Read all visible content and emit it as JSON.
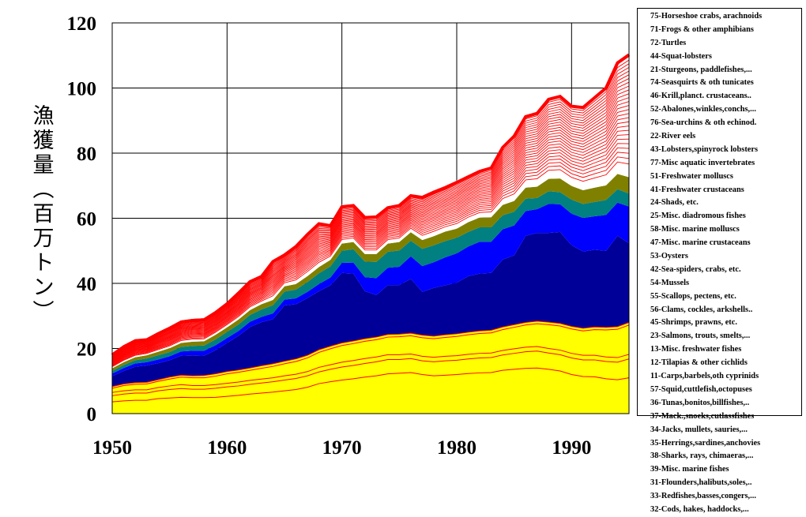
{
  "chart_data": {
    "type": "area",
    "title": "",
    "ylabel": "漁獲量（百万トン）",
    "xlabel": "",
    "xlim": [
      1950,
      1995
    ],
    "ylim": [
      0,
      120
    ],
    "x_ticks": [
      "1950",
      "1960",
      "1970",
      "1980",
      "1990"
    ],
    "y_ticks": [
      "0",
      "20",
      "40",
      "60",
      "80",
      "100",
      "120"
    ],
    "grid": true,
    "legend_position": "right",
    "x": [
      1950,
      1951,
      1952,
      1953,
      1954,
      1955,
      1956,
      1957,
      1958,
      1959,
      1960,
      1961,
      1962,
      1963,
      1964,
      1965,
      1966,
      1967,
      1968,
      1969,
      1970,
      1971,
      1972,
      1973,
      1974,
      1975,
      1976,
      1977,
      1978,
      1979,
      1980,
      1981,
      1982,
      1983,
      1984,
      1985,
      1986,
      1987,
      1988,
      1989,
      1990,
      1991,
      1992,
      1993,
      1994,
      1995
    ],
    "series": [
      {
        "name": "32-Cods, hakes, haddocks,...",
        "color": "#ffff00"
      },
      {
        "name": "33-Redfishes,basses,congers,...",
        "color": "#ffff00"
      },
      {
        "name": "31-Flounders,halibuts,soles,..",
        "color": "#ffff00"
      },
      {
        "name": "39-Misc. marine fishes",
        "color": "#ffff00"
      },
      {
        "name": "38-Sharks, rays, chimaeras,...",
        "color": "#ffff00"
      },
      {
        "name": "35-Herrings,sardines,anchovies",
        "color": "#000099"
      },
      {
        "name": "34-Jacks, mullets, sauries,...",
        "color": "#0000ff"
      },
      {
        "name": "37-Mack.,snoeks,cutlassfishes",
        "color": "#008080"
      },
      {
        "name": "36-Tunas,bonitos,billfishes,..",
        "color": "#808000"
      },
      {
        "name": "57-Squid,cuttlefish,octopuses",
        "color": "#ffffff"
      },
      {
        "name": "11-Carps,barbels,oth cyprinids",
        "color": "#ffffff"
      },
      {
        "name": "12-Tilapias & other cichlids",
        "color": "#ffffff"
      },
      {
        "name": "13-Misc. freshwater fishes",
        "color": "#ffffff"
      },
      {
        "name": "23-Salmons, trouts, smelts,...",
        "color": "#ffffff"
      },
      {
        "name": "45-Shrimps, prawns, etc.",
        "color": "#ffffff"
      },
      {
        "name": "56-Clams, cockles, arkshells..",
        "color": "#ffffff"
      },
      {
        "name": "55-Scallops, pectens, etc.",
        "color": "#ffffff"
      },
      {
        "name": "54-Mussels",
        "color": "#ffffff"
      },
      {
        "name": "42-Sea-spiders, crabs, etc.",
        "color": "#ffffff"
      },
      {
        "name": "53-Oysters",
        "color": "#ffffff"
      },
      {
        "name": "47-Misc. marine crustaceans",
        "color": "#ffffff"
      },
      {
        "name": "58-Misc. marine molluscs",
        "color": "#ffffff"
      },
      {
        "name": "25-Misc. diadromous fishes",
        "color": "#ffffff"
      },
      {
        "name": "24-Shads, etc.",
        "color": "#ffffff"
      },
      {
        "name": "41-Freshwater crustaceans",
        "color": "#ffffff"
      },
      {
        "name": "51-Freshwater molluscs",
        "color": "#ffffff"
      },
      {
        "name": "77-Misc aquatic invertebrates",
        "color": "#ffffff"
      },
      {
        "name": "43-Lobsters,spinyrock lobsters",
        "color": "#ffffff"
      },
      {
        "name": "22-River eels",
        "color": "#ffffff"
      },
      {
        "name": "76-Sea-urchins & oth echinod.",
        "color": "#ffffff"
      },
      {
        "name": "52-Abalones,winkles,conchs,...",
        "color": "#ffffff"
      },
      {
        "name": "46-Krill,planct. crustaceans..",
        "color": "#ffffff"
      },
      {
        "name": "74-Seasquirts & oth tunicates",
        "color": "#ffffff"
      },
      {
        "name": "21-Sturgeons, paddlefishes,...",
        "color": "#ffffff"
      },
      {
        "name": "44-Squat-lobsters",
        "color": "#ffffff"
      },
      {
        "name": "72-Turtles",
        "color": "#ffffff"
      },
      {
        "name": "71-Frogs & other amphibians",
        "color": "#ffffff"
      },
      {
        "name": "75-Horseshoe crabs, arachnoids",
        "color": "#ffffff"
      }
    ],
    "cumulative_boundaries": {
      "cods_top": [
        3.6,
        3.9,
        4.1,
        4.1,
        4.6,
        4.8,
        5.0,
        4.9,
        4.9,
        5.0,
        5.3,
        5.6,
        6.0,
        6.3,
        6.6,
        7.0,
        7.4,
        8.1,
        9.2,
        9.8,
        10.3,
        10.7,
        11.2,
        11.6,
        12.2,
        12.4,
        12.6,
        12.0,
        11.6,
        11.8,
        12.0,
        12.3,
        12.5,
        12.6,
        13.3,
        13.6,
        13.9,
        14.0,
        13.6,
        13.1,
        12.0,
        11.4,
        11.3,
        10.7,
        10.4,
        11.0
      ],
      "redfish_top": [
        5.5,
        6.0,
        6.3,
        6.3,
        7.0,
        7.4,
        7.7,
        7.5,
        7.5,
        7.8,
        8.2,
        8.5,
        9.0,
        9.4,
        9.8,
        10.3,
        10.8,
        11.6,
        12.8,
        13.6,
        14.3,
        14.8,
        15.4,
        15.9,
        16.6,
        16.6,
        16.9,
        16.2,
        15.9,
        16.2,
        16.4,
        16.8,
        17.1,
        17.2,
        18.0,
        18.5,
        19.0,
        19.2,
        18.6,
        18.1,
        17.1,
        16.5,
        16.5,
        16.0,
        15.8,
        16.8
      ],
      "flounder_top": [
        6.5,
        7.0,
        7.3,
        7.3,
        8.0,
        8.5,
        8.9,
        8.6,
        8.6,
        8.9,
        9.3,
        9.7,
        10.2,
        10.6,
        11.0,
        11.6,
        12.1,
        12.9,
        14.2,
        15.0,
        15.8,
        16.3,
        16.9,
        17.4,
        18.1,
        18.1,
        18.3,
        17.6,
        17.3,
        17.6,
        17.8,
        18.2,
        18.5,
        18.6,
        19.4,
        19.9,
        20.4,
        20.6,
        20.0,
        19.5,
        18.5,
        17.9,
        17.9,
        17.4,
        17.2,
        18.2
      ],
      "miscmarine_top": [
        7.8,
        8.6,
        9.0,
        9.1,
        9.9,
        10.6,
        11.2,
        11.0,
        11.0,
        11.5,
        12.2,
        12.7,
        13.3,
        13.9,
        14.5,
        15.3,
        16.0,
        17.1,
        18.8,
        19.9,
        20.9,
        21.5,
        22.2,
        22.7,
        23.5,
        23.6,
        23.9,
        23.3,
        23.0,
        23.4,
        23.7,
        24.2,
        24.6,
        24.8,
        25.8,
        26.5,
        27.2,
        27.6,
        27.3,
        26.9,
        26.0,
        25.4,
        25.8,
        25.7,
        25.9,
        27.2
      ],
      "sharks_top": [
        8.3,
        9.1,
        9.5,
        9.6,
        10.4,
        11.2,
        11.8,
        11.6,
        11.7,
        12.2,
        12.9,
        13.4,
        14.0,
        14.7,
        15.3,
        16.1,
        16.8,
        17.9,
        19.6,
        20.7,
        21.7,
        22.3,
        23.0,
        23.5,
        24.3,
        24.4,
        24.7,
        24.1,
        23.8,
        24.2,
        24.5,
        25.0,
        25.4,
        25.6,
        26.6,
        27.3,
        28.0,
        28.4,
        28.1,
        27.7,
        26.8,
        26.2,
        26.6,
        26.5,
        26.7,
        28.0
      ],
      "herrings_top": [
        11.5,
        13.1,
        14.4,
        14.8,
        15.5,
        16.4,
        17.8,
        17.9,
        17.8,
        19.5,
        21.7,
        23.9,
        26.6,
        28.1,
        29.0,
        33.2,
        33.6,
        35.5,
        37.6,
        39.4,
        43.2,
        43.0,
        37.6,
        36.4,
        39.5,
        39.5,
        41.4,
        37.4,
        38.6,
        39.4,
        40.2,
        42.2,
        43.0,
        43.2,
        47.3,
        48.6,
        54.6,
        55.5,
        55.5,
        55.8,
        51.7,
        49.8,
        50.3,
        50.0,
        54.6,
        52.3
      ],
      "jacks_top": [
        12.3,
        14.0,
        15.4,
        15.8,
        16.6,
        17.6,
        19.1,
        19.3,
        19.3,
        21.0,
        23.2,
        25.4,
        28.2,
        29.7,
        30.8,
        35.0,
        35.4,
        37.4,
        39.8,
        41.8,
        46.3,
        46.4,
        41.9,
        41.6,
        44.8,
        45.1,
        48.3,
        45.3,
        46.5,
        48.0,
        49.2,
        51.3,
        52.8,
        52.8,
        56.6,
        57.8,
        62.2,
        62.8,
        64.4,
        64.3,
        61.4,
        60.1,
        60.6,
        61.0,
        64.8,
        63.6
      ],
      "mackerel_top": [
        13.1,
        14.9,
        16.4,
        16.9,
        17.9,
        18.9,
        20.5,
        20.8,
        20.9,
        22.8,
        25.1,
        27.4,
        30.3,
        32.0,
        33.3,
        37.5,
        38.1,
        40.4,
        43.1,
        45.2,
        50.0,
        50.5,
        46.7,
        46.6,
        49.7,
        50.1,
        53.1,
        50.6,
        51.7,
        53.0,
        54.0,
        55.8,
        57.2,
        57.2,
        60.9,
        62.0,
        66.0,
        66.2,
        68.3,
        68.0,
        65.7,
        64.4,
        65.0,
        65.6,
        68.9,
        67.6
      ],
      "tunas_top": [
        13.9,
        15.8,
        17.3,
        17.9,
        19.0,
        20.1,
        21.7,
        22.1,
        22.2,
        24.2,
        26.5,
        28.9,
        31.8,
        33.6,
        34.9,
        39.1,
        39.8,
        42.2,
        45.0,
        47.2,
        52.2,
        52.7,
        49.0,
        49.0,
        52.2,
        52.7,
        55.7,
        53.3,
        54.5,
        55.9,
        56.8,
        58.8,
        60.2,
        60.3,
        64.1,
        65.3,
        69.4,
        69.7,
        72.1,
        72.2,
        69.9,
        68.6,
        69.4,
        70.1,
        73.6,
        72.6
      ],
      "total": [
        18.6,
        21.1,
        22.9,
        23.2,
        25.1,
        26.8,
        28.7,
        29.2,
        29.4,
        31.6,
        34.3,
        37.6,
        41.1,
        42.7,
        47.3,
        49.3,
        51.9,
        55.6,
        58.9,
        58.3,
        64.1,
        64.5,
        60.8,
        61.0,
        63.8,
        64.5,
        67.5,
        67.0,
        68.6,
        70.0,
        71.6,
        73.3,
        75.0,
        76.0,
        82.3,
        85.8,
        91.8,
        92.8,
        97.1,
        98.0,
        95.0,
        94.6,
        97.6,
        100.6,
        108.3,
        110.8
      ]
    }
  }
}
